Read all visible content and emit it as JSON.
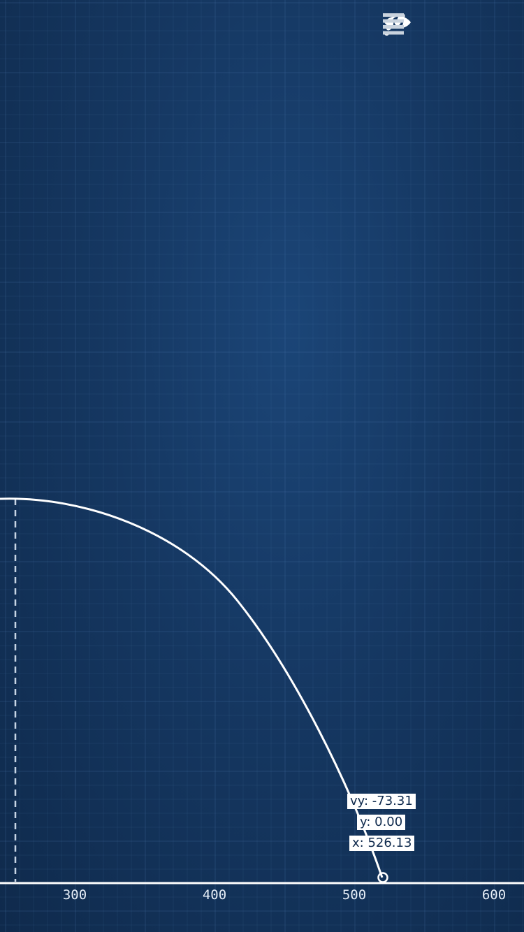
{
  "toolbar": {
    "icons": [
      "eye-icon",
      "footprints-icon",
      "menu-icon"
    ]
  },
  "axis": {
    "x_ticks": [
      "300",
      "400",
      "500",
      "600"
    ]
  },
  "readouts": {
    "vy": "vy: -73.31",
    "y": "y: 0.00",
    "x": "x: 526.13"
  },
  "colors": {
    "background": "#153761",
    "grid": "#2c5688",
    "trajectory": "#ffffff",
    "ground": "#ffffff"
  },
  "chart_data": {
    "type": "line",
    "x_ticks": [
      300,
      400,
      500,
      600
    ],
    "xlim": [
      241,
      622
    ],
    "apex_x": 255,
    "landing_x": 526.13,
    "landing_y": 0.0,
    "landing_vy": -73.31
  }
}
